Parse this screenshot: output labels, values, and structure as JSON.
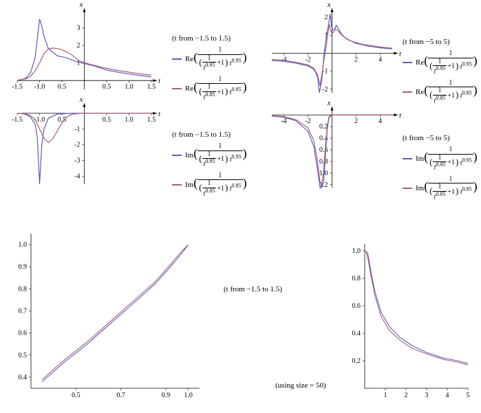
{
  "colors": {
    "series1": "#5e5ab5",
    "series2": "#a55e7a",
    "axis": "#000000",
    "bg": "#ffffff"
  },
  "charts": {
    "re_small": {
      "title_range": "(t from −1.5 to 1.5)",
      "xlim": [
        -1.5,
        1.5
      ],
      "ylim": [
        -0.5,
        3.8
      ],
      "xticks": [
        -1.5,
        -1.0,
        -0.5,
        0.5,
        1.0,
        1.5
      ],
      "yticks": [
        1,
        2,
        3
      ],
      "xlabel": "t",
      "ylabel": "x",
      "series1_points": [
        [
          -1.5,
          0.02
        ],
        [
          -1.4,
          0.05
        ],
        [
          -1.3,
          0.15
        ],
        [
          -1.2,
          0.45
        ],
        [
          -1.1,
          1.3
        ],
        [
          -1.05,
          2.4
        ],
        [
          -1.0,
          3.5
        ],
        [
          -0.95,
          3.1
        ],
        [
          -0.9,
          2.5
        ],
        [
          -0.8,
          1.8
        ],
        [
          -0.6,
          1.4
        ],
        [
          -0.4,
          1.3
        ],
        [
          -0.2,
          1.1
        ],
        [
          -0.05,
          1.0
        ],
        [
          0.2,
          0.85
        ],
        [
          0.5,
          0.6
        ],
        [
          0.8,
          0.45
        ],
        [
          1.2,
          0.3
        ],
        [
          1.5,
          0.2
        ]
      ],
      "series2_points": [
        [
          -1.5,
          0.02
        ],
        [
          -1.3,
          0.1
        ],
        [
          -1.2,
          0.25
        ],
        [
          -1.1,
          0.55
        ],
        [
          -1.0,
          1.0
        ],
        [
          -0.9,
          1.55
        ],
        [
          -0.8,
          1.8
        ],
        [
          -0.7,
          1.85
        ],
        [
          -0.6,
          1.82
        ],
        [
          -0.5,
          1.75
        ],
        [
          -0.3,
          1.5
        ],
        [
          -0.1,
          1.1
        ],
        [
          0.1,
          0.95
        ],
        [
          0.4,
          0.75
        ],
        [
          0.8,
          0.55
        ],
        [
          1.2,
          0.4
        ],
        [
          1.5,
          0.3
        ]
      ],
      "legend_prefix": "Re"
    },
    "re_wide": {
      "title_range": "(t from −5 to 5)",
      "xlim": [
        -5,
        5
      ],
      "ylim": [
        -2.2,
        2.2
      ],
      "xticks": [
        -4,
        -2,
        2,
        4
      ],
      "yticks": [
        -2,
        -1,
        1,
        2
      ],
      "xlabel": "t",
      "ylabel": "x",
      "series1_points": [
        [
          -5,
          -0.4
        ],
        [
          -4,
          -0.45
        ],
        [
          -3,
          -0.55
        ],
        [
          -2,
          -0.7
        ],
        [
          -1.5,
          -0.9
        ],
        [
          -1.2,
          -1.3
        ],
        [
          -1.05,
          -2.2
        ],
        [
          -0.85,
          -1.5
        ],
        [
          -0.7,
          -0.3
        ],
        [
          -0.6,
          0.3
        ],
        [
          -0.45,
          1.0
        ],
        [
          -0.3,
          1.55
        ],
        [
          -0.2,
          2.0
        ],
        [
          -0.15,
          2.2
        ],
        [
          -0.05,
          1.5
        ],
        [
          0.05,
          1.3
        ],
        [
          0.2,
          1.35
        ],
        [
          0.35,
          1.55
        ],
        [
          0.5,
          1.4
        ],
        [
          0.8,
          1.05
        ],
        [
          1.2,
          0.8
        ],
        [
          2,
          0.55
        ],
        [
          3,
          0.4
        ],
        [
          4,
          0.3
        ],
        [
          5,
          0.25
        ]
      ],
      "series2_points": [
        [
          -5,
          -0.35
        ],
        [
          -4,
          -0.4
        ],
        [
          -3,
          -0.5
        ],
        [
          -2,
          -0.65
        ],
        [
          -1.5,
          -0.85
        ],
        [
          -1.2,
          -1.2
        ],
        [
          -1.0,
          -1.8
        ],
        [
          -0.85,
          -1.2
        ],
        [
          -0.7,
          -0.5
        ],
        [
          -0.55,
          0.1
        ],
        [
          -0.4,
          0.8
        ],
        [
          -0.3,
          1.3
        ],
        [
          -0.22,
          1.6
        ],
        [
          -0.12,
          1.3
        ],
        [
          -0.02,
          1.1
        ],
        [
          0.1,
          1.15
        ],
        [
          0.3,
          1.35
        ],
        [
          0.5,
          1.25
        ],
        [
          0.9,
          0.95
        ],
        [
          1.5,
          0.7
        ],
        [
          2.5,
          0.5
        ],
        [
          4,
          0.35
        ],
        [
          5,
          0.28
        ]
      ],
      "legend_prefix": "Re"
    },
    "im_small": {
      "title_range": "(t from −1.5 to 1.5)",
      "xlim": [
        -1.5,
        1.5
      ],
      "ylim": [
        -4.5,
        0.3
      ],
      "xticks": [
        -1.5,
        -1.0,
        -0.5,
        0.5,
        1.0,
        1.5
      ],
      "yticks": [
        -1,
        -2,
        -3,
        -4
      ],
      "xlabel": "t",
      "ylabel": "x",
      "series1_points": [
        [
          -1.5,
          0.0
        ],
        [
          -1.4,
          -0.02
        ],
        [
          -1.3,
          -0.08
        ],
        [
          -1.2,
          -0.25
        ],
        [
          -1.1,
          -0.7
        ],
        [
          -1.05,
          -1.5
        ],
        [
          -1.0,
          -4.5
        ],
        [
          -0.95,
          -2.0
        ],
        [
          -0.9,
          -1.0
        ],
        [
          -0.8,
          -0.3
        ],
        [
          -0.6,
          -0.05
        ],
        [
          -0.3,
          0.0
        ],
        [
          0.5,
          0.0
        ],
        [
          1.5,
          0.0
        ]
      ],
      "series2_points": [
        [
          -1.5,
          0.0
        ],
        [
          -1.3,
          -0.05
        ],
        [
          -1.2,
          -0.15
        ],
        [
          -1.1,
          -0.4
        ],
        [
          -1.0,
          -1.0
        ],
        [
          -0.9,
          -1.6
        ],
        [
          -0.8,
          -1.85
        ],
        [
          -0.7,
          -1.6
        ],
        [
          -0.6,
          -1.1
        ],
        [
          -0.5,
          -0.6
        ],
        [
          -0.4,
          -0.25
        ],
        [
          -0.3,
          -0.08
        ],
        [
          -0.1,
          0.0
        ],
        [
          0.5,
          0.0
        ],
        [
          1.5,
          0.0
        ]
      ],
      "legend_prefix": "Im"
    },
    "im_wide": {
      "title_range": "(t from −5 to 5)",
      "xlim": [
        -5,
        5
      ],
      "ylim": [
        -1.25,
        0.05
      ],
      "xticks": [
        -4,
        -2,
        2,
        4
      ],
      "yticks": [
        -0.2,
        -0.4,
        -0.6,
        -0.8,
        -1.0,
        -1.2
      ],
      "xlabel": "t",
      "ylabel": "x",
      "series1_points": [
        [
          -5,
          -0.02
        ],
        [
          -4,
          -0.04
        ],
        [
          -3,
          -0.1
        ],
        [
          -2,
          -0.28
        ],
        [
          -1.5,
          -0.55
        ],
        [
          -1.2,
          -0.95
        ],
        [
          -1.0,
          -1.25
        ],
        [
          -0.85,
          -1.25
        ],
        [
          -0.7,
          -1.15
        ],
        [
          -0.55,
          -0.7
        ],
        [
          -0.4,
          -0.25
        ],
        [
          -0.25,
          -0.05
        ],
        [
          0.0,
          0.0
        ],
        [
          1.0,
          0.0
        ],
        [
          5,
          0.0
        ]
      ],
      "series2_points": [
        [
          -5,
          -0.015
        ],
        [
          -4,
          -0.03
        ],
        [
          -3,
          -0.08
        ],
        [
          -2,
          -0.22
        ],
        [
          -1.5,
          -0.45
        ],
        [
          -1.2,
          -0.8
        ],
        [
          -1.0,
          -1.15
        ],
        [
          -0.85,
          -1.2
        ],
        [
          -0.7,
          -0.95
        ],
        [
          -0.55,
          -0.55
        ],
        [
          -0.4,
          -0.2
        ],
        [
          -0.25,
          -0.03
        ],
        [
          0.0,
          0.0
        ],
        [
          1.0,
          0.0
        ],
        [
          5,
          0.0
        ]
      ],
      "legend_prefix": "Im"
    },
    "bottom_left": {
      "title_range": "(t from −1.5 to 1.5)",
      "xlim": [
        0.3,
        1.05
      ],
      "ylim": [
        0.35,
        1.05
      ],
      "xticks": [
        0.5,
        0.7,
        0.9,
        1.0
      ],
      "yticks": [
        0.4,
        0.5,
        0.6,
        0.7,
        0.8,
        0.9,
        1.0
      ],
      "series1_points": [
        [
          0.35,
          0.38
        ],
        [
          0.45,
          0.47
        ],
        [
          0.55,
          0.55
        ],
        [
          0.65,
          0.64
        ],
        [
          0.75,
          0.73
        ],
        [
          0.85,
          0.82
        ],
        [
          0.92,
          0.9
        ],
        [
          0.97,
          0.96
        ],
        [
          1.0,
          1.0
        ]
      ],
      "series2_points": [
        [
          0.35,
          0.39
        ],
        [
          0.45,
          0.48
        ],
        [
          0.55,
          0.56
        ],
        [
          0.65,
          0.65
        ],
        [
          0.75,
          0.74
        ],
        [
          0.85,
          0.83
        ],
        [
          0.92,
          0.91
        ],
        [
          0.97,
          0.97
        ],
        [
          1.0,
          1.0
        ]
      ]
    },
    "bottom_right": {
      "note": "(using size = 50)",
      "xlim": [
        0,
        5
      ],
      "ylim": [
        0,
        1.05
      ],
      "xticks": [
        1,
        2,
        3,
        4,
        5
      ],
      "yticks": [
        0.2,
        0.4,
        0.6,
        0.8,
        1.0
      ],
      "series1_points": [
        [
          0.05,
          1.0
        ],
        [
          0.15,
          0.98
        ],
        [
          0.3,
          0.85
        ],
        [
          0.5,
          0.7
        ],
        [
          0.8,
          0.55
        ],
        [
          1.2,
          0.45
        ],
        [
          1.7,
          0.37
        ],
        [
          2.3,
          0.31
        ],
        [
          3.0,
          0.26
        ],
        [
          3.8,
          0.22
        ],
        [
          4.5,
          0.2
        ],
        [
          5,
          0.18
        ]
      ],
      "series2_points": [
        [
          0.05,
          1.0
        ],
        [
          0.15,
          0.95
        ],
        [
          0.3,
          0.82
        ],
        [
          0.5,
          0.67
        ],
        [
          0.8,
          0.52
        ],
        [
          1.2,
          0.42
        ],
        [
          1.7,
          0.35
        ],
        [
          2.3,
          0.29
        ],
        [
          3.0,
          0.25
        ],
        [
          3.8,
          0.21
        ],
        [
          4.5,
          0.19
        ],
        [
          5,
          0.17
        ]
      ]
    }
  },
  "formula": {
    "exp1": "0.95",
    "exp2": "0.85"
  }
}
